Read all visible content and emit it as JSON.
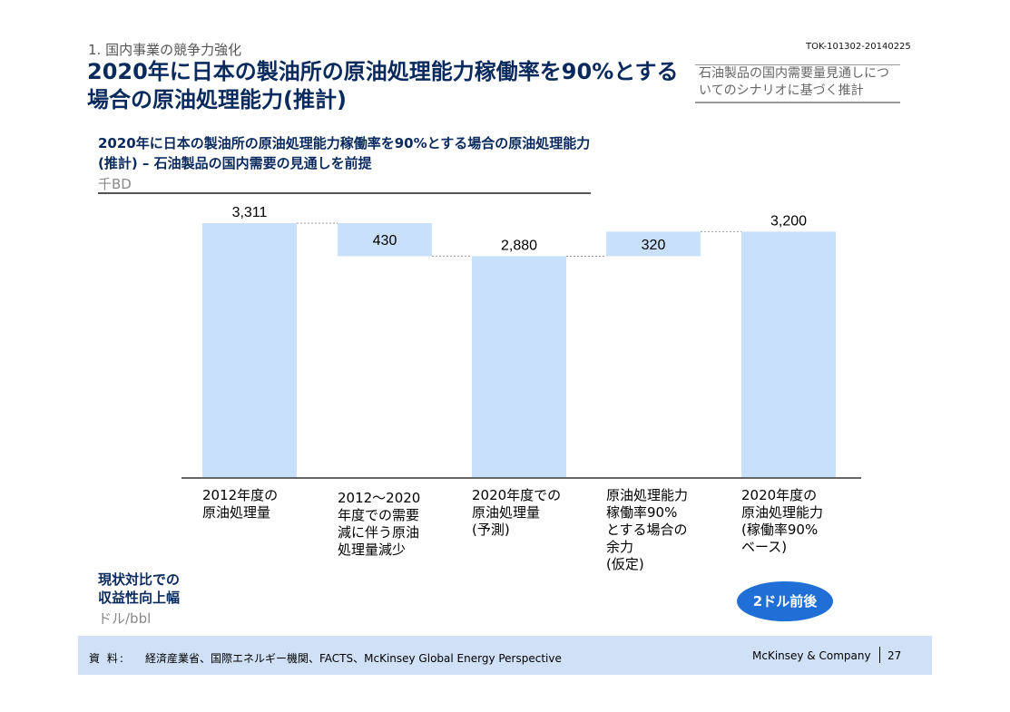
{
  "header": {
    "section": "1. 国内事業の競争力強化",
    "doc_code": "TOK-101302-20140225",
    "title": "2020年に日本の製油所の原油処理能力稼働率を90%とする場合の原油処理能力(推計)",
    "scenario_note": "石油製品の国内需要量見通しについてのシナリオに基づく推計"
  },
  "chart_data": {
    "type": "bar",
    "subtype": "waterfall",
    "title": "2020年に日本の製油所の原油処理能力稼働率を90%とする場合の原油処理能力 (推計) – 石油製品の国内需要の見通しを前提",
    "unit": "千BD",
    "categories": [
      "2012年度の原油処理量",
      "2012～2020年度での需要減に伴う原油処理量減少",
      "2020年度での原油処理量(予測)",
      "原油処理能力稼働率90%とする場合の余力(仮定)",
      "2020年度の原油処理能力(稼働率90%ベース)"
    ],
    "values": [
      3311,
      -430,
      2880,
      320,
      3200
    ],
    "labels": [
      "3,311",
      "430",
      "2,880",
      "320",
      "3,200"
    ],
    "kinds": [
      "total",
      "decrease",
      "total",
      "increase",
      "total"
    ],
    "bar_color": "#c9e0fa"
  },
  "categories_display": [
    [
      "2012年度の",
      "原油処理量"
    ],
    [
      "2012～2020",
      "年度での需要",
      "減に伴う原油",
      "処理量減少"
    ],
    [
      "2020年度での",
      "原油処理量",
      "(予測)"
    ],
    [
      "原油処理能力",
      "稼働率90%",
      "とする場合の",
      "余力",
      "(仮定)"
    ],
    [
      "2020年度の",
      "原油処理能力",
      "(稼働率90%",
      "ベース)"
    ]
  ],
  "profit": {
    "title_line1": "現状対比での",
    "title_line2": "収益性向上幅",
    "unit": "ドル/bbl",
    "badge": "2ドル前後"
  },
  "footer": {
    "source_label": "資 料:",
    "source_text": "経済産業省、国際エネルギー機関、FACTS、McKinsey Global Energy Perspective",
    "company": "McKinsey & Company",
    "page": "27"
  }
}
